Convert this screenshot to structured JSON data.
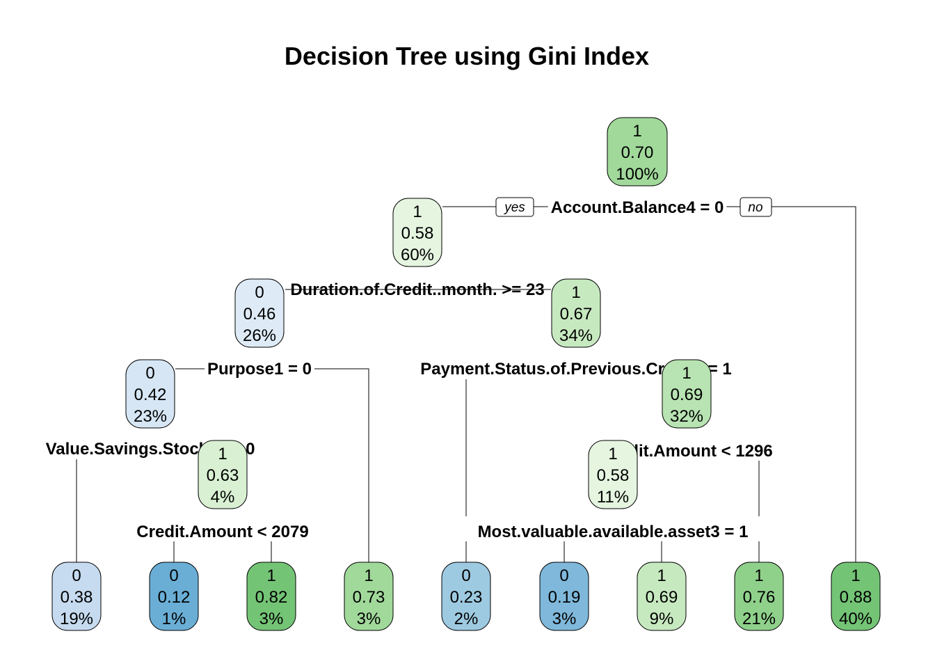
{
  "title": "Decision Tree using Gini Index",
  "colors": {
    "class0_light": "#dce8f5",
    "class0_dark": "#5fa3d1",
    "class1_light": "#e8f5e0",
    "class1_dark": "#6cbf6c"
  },
  "branch_labels": {
    "yes": "yes",
    "no": "no"
  },
  "nodes": [
    {
      "id": "n1",
      "cls": "1",
      "prob": "0.70",
      "pct": "100%",
      "shade": "#a1d99b"
    },
    {
      "id": "n2",
      "cls": "1",
      "prob": "0.58",
      "pct": "60%",
      "shade": "#e5f5e0"
    },
    {
      "id": "n3",
      "cls": "0",
      "prob": "0.46",
      "pct": "26%",
      "shade": "#deebf7"
    },
    {
      "id": "n4",
      "cls": "1",
      "prob": "0.67",
      "pct": "34%",
      "shade": "#c7e9c0"
    },
    {
      "id": "n5",
      "cls": "0",
      "prob": "0.42",
      "pct": "23%",
      "shade": "#d6e6f4"
    },
    {
      "id": "n6",
      "cls": "1",
      "prob": "0.69",
      "pct": "32%",
      "shade": "#b8e3b2"
    },
    {
      "id": "n7",
      "cls": "1",
      "prob": "0.63",
      "pct": "4%",
      "shade": "#d9f0d3"
    },
    {
      "id": "n8",
      "cls": "1",
      "prob": "0.58",
      "pct": "11%",
      "shade": "#e5f5e0"
    },
    {
      "id": "l1",
      "cls": "0",
      "prob": "0.38",
      "pct": "19%",
      "shade": "#c6dbef"
    },
    {
      "id": "l2",
      "cls": "0",
      "prob": "0.12",
      "pct": "1%",
      "shade": "#6aaed6"
    },
    {
      "id": "l3",
      "cls": "1",
      "prob": "0.82",
      "pct": "3%",
      "shade": "#74c476"
    },
    {
      "id": "l4",
      "cls": "1",
      "prob": "0.73",
      "pct": "3%",
      "shade": "#a1d99b"
    },
    {
      "id": "l5",
      "cls": "0",
      "prob": "0.23",
      "pct": "2%",
      "shade": "#9ecae1"
    },
    {
      "id": "l6",
      "cls": "0",
      "prob": "0.19",
      "pct": "3%",
      "shade": "#7fb8da"
    },
    {
      "id": "l7",
      "cls": "1",
      "prob": "0.69",
      "pct": "9%",
      "shade": "#c7e9c0"
    },
    {
      "id": "l8",
      "cls": "1",
      "prob": "0.76",
      "pct": "21%",
      "shade": "#8fd18b"
    },
    {
      "id": "l9",
      "cls": "1",
      "prob": "0.88",
      "pct": "40%",
      "shade": "#74c476"
    }
  ],
  "splits": [
    {
      "id": "s1",
      "text": "Account.Balance4 = 0"
    },
    {
      "id": "s2",
      "text": "Duration.of.Credit..month. >= 23"
    },
    {
      "id": "s3",
      "text": "Purpose1 = 0"
    },
    {
      "id": "s4",
      "text": "Payment.Status.of.Previous.Credit1 = 1"
    },
    {
      "id": "s5",
      "text": "Value.Savings.Stocks1 = 0"
    },
    {
      "id": "s6",
      "text": "Credit.Amount < 1296"
    },
    {
      "id": "s7",
      "text": "Credit.Amount < 2079"
    },
    {
      "id": "s8",
      "text": "Most.valuable.available.asset3 = 1"
    }
  ]
}
